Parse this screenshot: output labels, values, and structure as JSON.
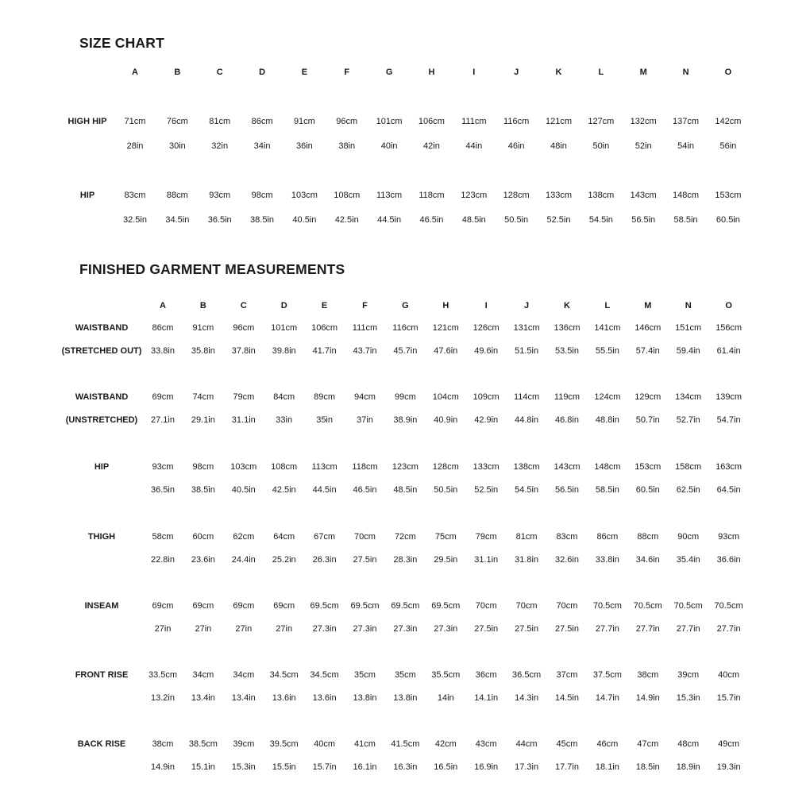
{
  "size_chart": {
    "title": "SIZE CHART",
    "sizes": [
      "A",
      "B",
      "C",
      "D",
      "E",
      "F",
      "G",
      "H",
      "I",
      "J",
      "K",
      "L",
      "M",
      "N",
      "O"
    ],
    "rows": [
      {
        "label": "HIGH HIP",
        "cm": [
          "71cm",
          "76cm",
          "81cm",
          "86cm",
          "91cm",
          "96cm",
          "101cm",
          "106cm",
          "111cm",
          "116cm",
          "121cm",
          "127cm",
          "132cm",
          "137cm",
          "142cm"
        ],
        "in": [
          "28in",
          "30in",
          "32in",
          "34in",
          "36in",
          "38in",
          "40in",
          "42in",
          "44in",
          "46in",
          "48in",
          "50in",
          "52in",
          "54in",
          "56in"
        ]
      },
      {
        "label": "HIP",
        "cm": [
          "83cm",
          "88cm",
          "93cm",
          "98cm",
          "103cm",
          "108cm",
          "113cm",
          "118cm",
          "123cm",
          "128cm",
          "133cm",
          "138cm",
          "143cm",
          "148cm",
          "153cm"
        ],
        "in": [
          "32.5in",
          "34.5in",
          "36.5in",
          "38.5in",
          "40.5in",
          "42.5in",
          "44.5in",
          "46.5in",
          "48.5in",
          "50.5in",
          "52.5in",
          "54.5in",
          "56.5in",
          "58.5in",
          "60.5in"
        ]
      }
    ]
  },
  "finished": {
    "title": "FINISHED GARMENT MEASUREMENTS",
    "sizes": [
      "A",
      "B",
      "C",
      "D",
      "E",
      "F",
      "G",
      "H",
      "I",
      "J",
      "K",
      "L",
      "M",
      "N",
      "O"
    ],
    "rows": [
      {
        "label": "WAISTBAND",
        "sublabel": "(STRETCHED OUT)",
        "cm": [
          "86cm",
          "91cm",
          "96cm",
          "101cm",
          "106cm",
          "111cm",
          "116cm",
          "121cm",
          "126cm",
          "131cm",
          "136cm",
          "141cm",
          "146cm",
          "151cm",
          "156cm"
        ],
        "in": [
          "33.8in",
          "35.8in",
          "37.8in",
          "39.8in",
          "41.7in",
          "43.7in",
          "45.7in",
          "47.6in",
          "49.6in",
          "51.5in",
          "53.5in",
          "55.5in",
          "57.4in",
          "59.4in",
          "61.4in"
        ]
      },
      {
        "label": "WAISTBAND",
        "sublabel": "(UNSTRETCHED)",
        "cm": [
          "69cm",
          "74cm",
          "79cm",
          "84cm",
          "89cm",
          "94cm",
          "99cm",
          "104cm",
          "109cm",
          "114cm",
          "119cm",
          "124cm",
          "129cm",
          "134cm",
          "139cm"
        ],
        "in": [
          "27.1in",
          "29.1in",
          "31.1in",
          "33in",
          "35in",
          "37in",
          "38.9in",
          "40.9in",
          "42.9in",
          "44.8in",
          "46.8in",
          "48.8in",
          "50.7in",
          "52.7in",
          "54.7in"
        ]
      },
      {
        "label": "HIP",
        "cm": [
          "93cm",
          "98cm",
          "103cm",
          "108cm",
          "113cm",
          "118cm",
          "123cm",
          "128cm",
          "133cm",
          "138cm",
          "143cm",
          "148cm",
          "153cm",
          "158cm",
          "163cm"
        ],
        "in": [
          "36.5in",
          "38.5in",
          "40.5in",
          "42.5in",
          "44.5in",
          "46.5in",
          "48.5in",
          "50.5in",
          "52.5in",
          "54.5in",
          "56.5in",
          "58.5in",
          "60.5in",
          "62.5in",
          "64.5in"
        ]
      },
      {
        "label": "THIGH",
        "cm": [
          "58cm",
          "60cm",
          "62cm",
          "64cm",
          "67cm",
          "70cm",
          "72cm",
          "75cm",
          "79cm",
          "81cm",
          "83cm",
          "86cm",
          "88cm",
          "90cm",
          "93cm"
        ],
        "in": [
          "22.8in",
          "23.6in",
          "24.4in",
          "25.2in",
          "26.3in",
          "27.5in",
          "28.3in",
          "29.5in",
          "31.1in",
          "31.8in",
          "32.6in",
          "33.8in",
          "34.6in",
          "35.4in",
          "36.6in"
        ]
      },
      {
        "label": "INSEAM",
        "cm": [
          "69cm",
          "69cm",
          "69cm",
          "69cm",
          "69.5cm",
          "69.5cm",
          "69.5cm",
          "69.5cm",
          "70cm",
          "70cm",
          "70cm",
          "70.5cm",
          "70.5cm",
          "70.5cm",
          "70.5cm"
        ],
        "in": [
          "27in",
          "27in",
          "27in",
          "27in",
          "27.3in",
          "27.3in",
          "27.3in",
          "27.3in",
          "27.5in",
          "27.5in",
          "27.5in",
          "27.7in",
          "27.7in",
          "27.7in",
          "27.7in"
        ]
      },
      {
        "label": "FRONT RISE",
        "cm": [
          "33.5cm",
          "34cm",
          "34cm",
          "34.5cm",
          "34.5cm",
          "35cm",
          "35cm",
          "35.5cm",
          "36cm",
          "36.5cm",
          "37cm",
          "37.5cm",
          "38cm",
          "39cm",
          "40cm"
        ],
        "in": [
          "13.2in",
          "13.4in",
          "13.4in",
          "13.6in",
          "13.6in",
          "13.8in",
          "13.8in",
          "14in",
          "14.1in",
          "14.3in",
          "14.5in",
          "14.7in",
          "14.9in",
          "15.3in",
          "15.7in"
        ]
      },
      {
        "label": "BACK RISE",
        "cm": [
          "38cm",
          "38.5cm",
          "39cm",
          "39.5cm",
          "40cm",
          "41cm",
          "41.5cm",
          "42cm",
          "43cm",
          "44cm",
          "45cm",
          "46cm",
          "47cm",
          "48cm",
          "49cm"
        ],
        "in": [
          "14.9in",
          "15.1in",
          "15.3in",
          "15.5in",
          "15.7in",
          "16.1in",
          "16.3in",
          "16.5in",
          "16.9in",
          "17.3in",
          "17.7in",
          "18.1in",
          "18.5in",
          "18.9in",
          "19.3in"
        ]
      }
    ]
  }
}
